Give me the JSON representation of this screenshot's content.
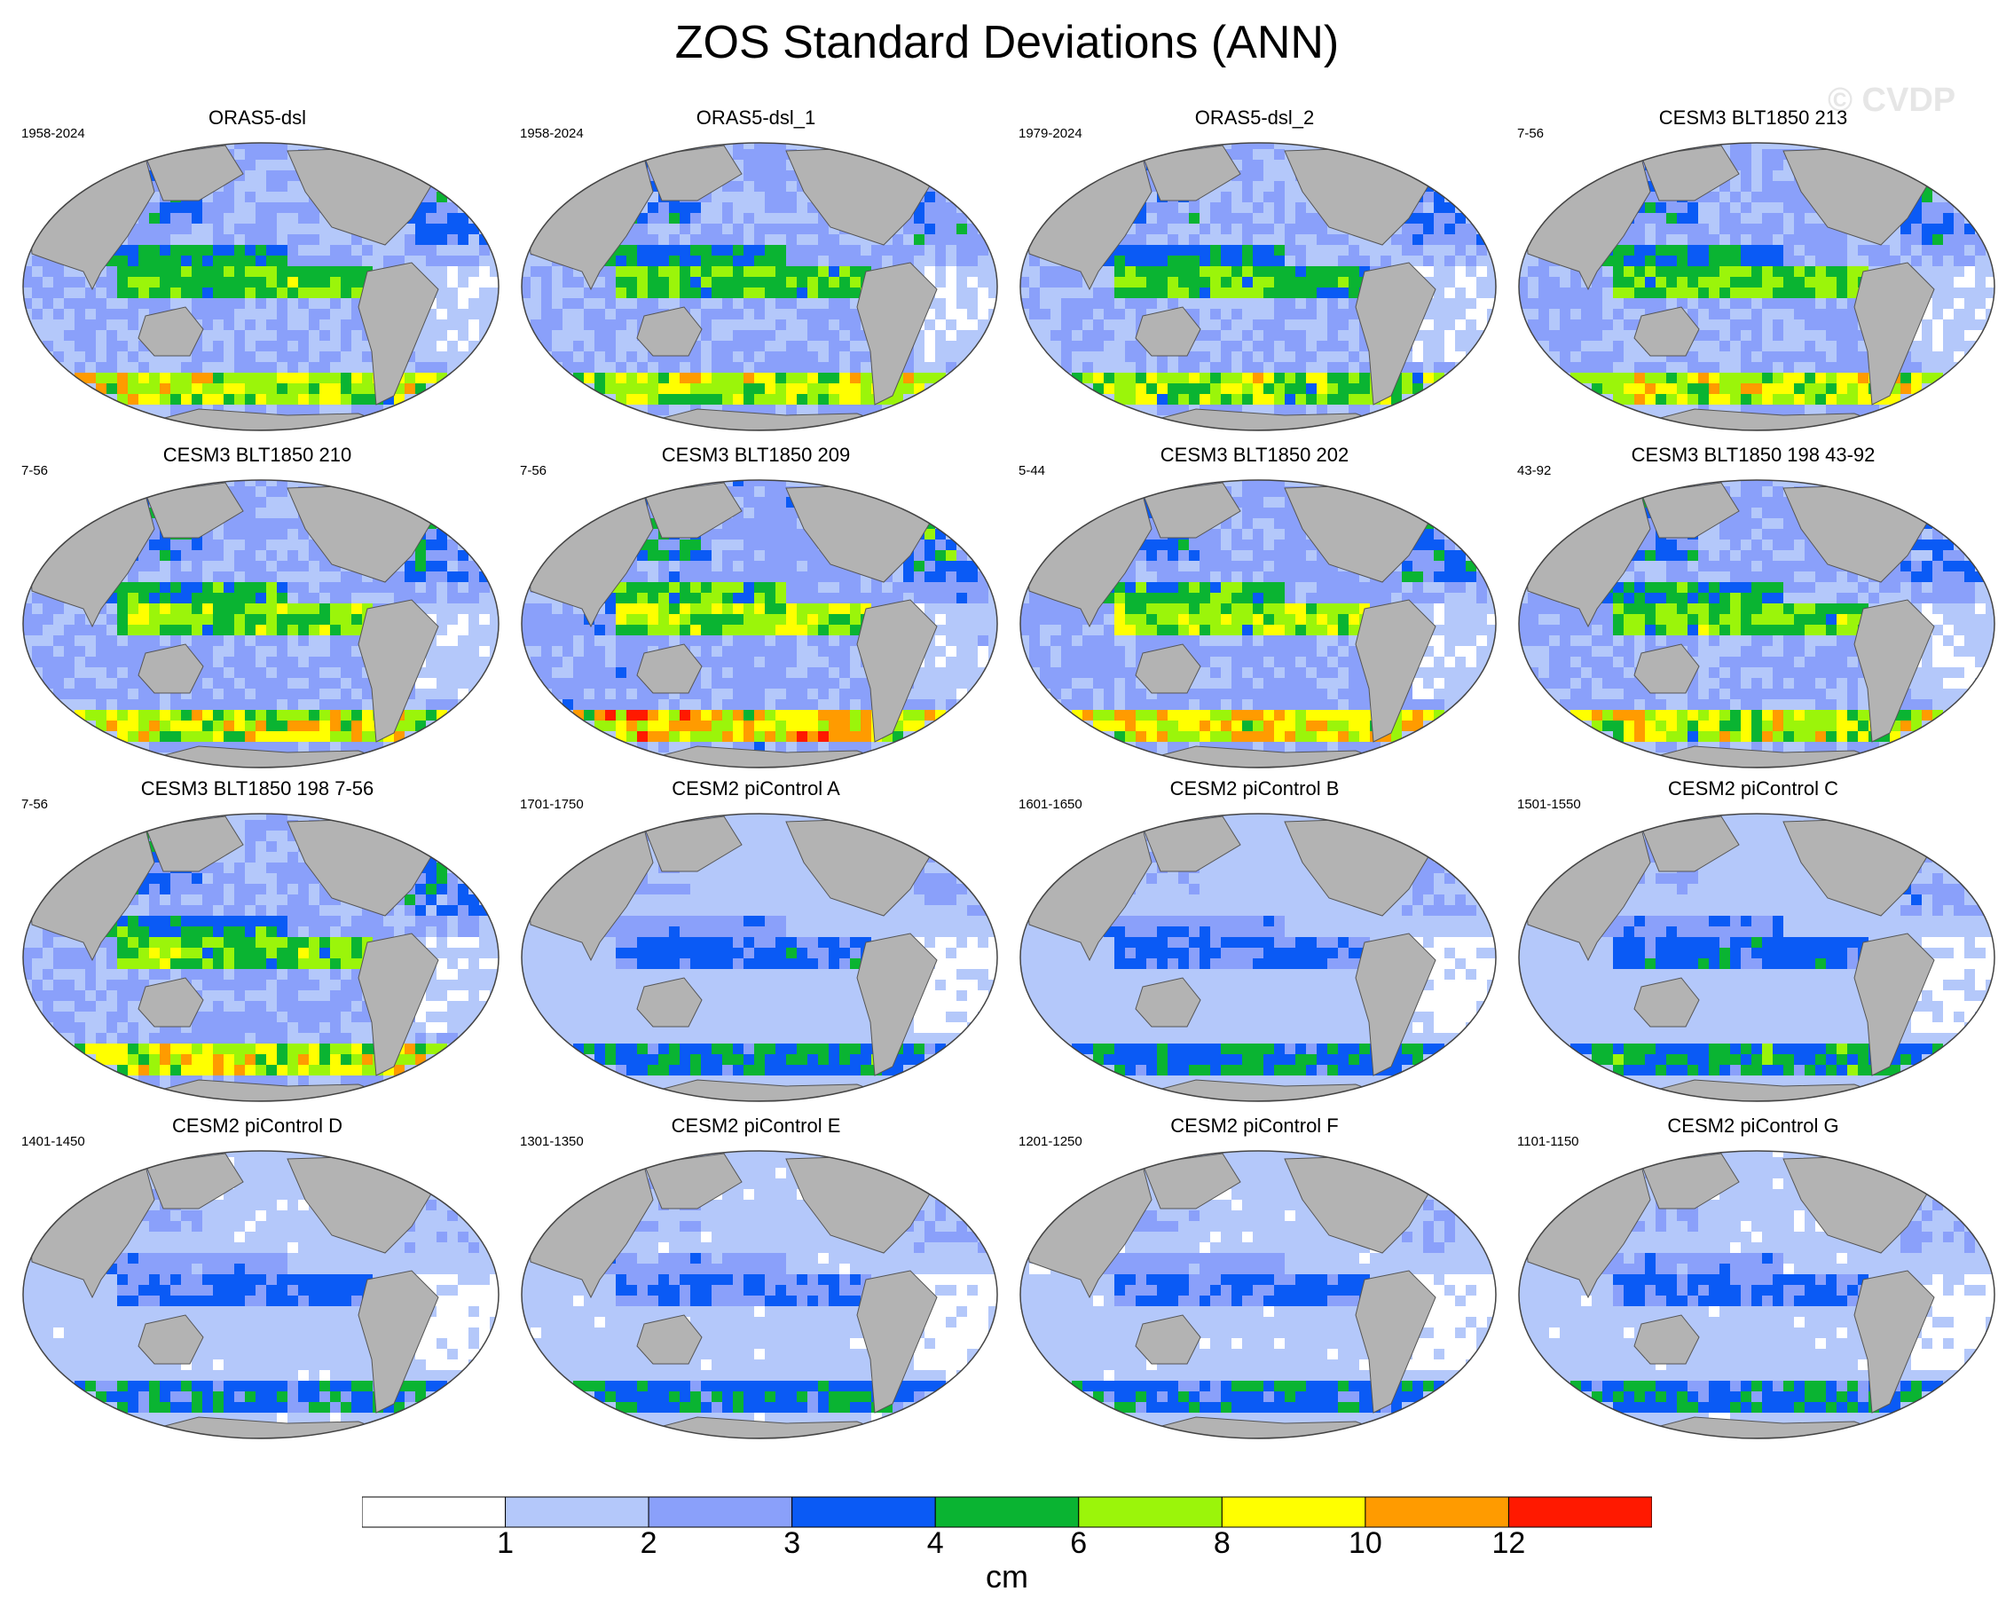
{
  "title": "ZOS Standard Deviations (ANN)",
  "watermark": "© CVDP",
  "colors": {
    "land": "#b3b3b3",
    "levels": [
      "#ffffff",
      "#b4c8fa",
      "#8aa0fa",
      "#0a5af5",
      "#0ab432",
      "#9bf50a",
      "#ffff00",
      "#ff9b00",
      "#ff1900"
    ]
  },
  "colorbar": {
    "tick_labels": [
      "1",
      "2",
      "3",
      "4",
      "6",
      "8",
      "10",
      "12"
    ],
    "unit": "cm"
  },
  "panels": [
    {
      "title": "ORAS5-dsl",
      "period": "1958-2024",
      "intensity": 1.25
    },
    {
      "title": "ORAS5-dsl_1",
      "period": "1958-2024",
      "intensity": 1.25
    },
    {
      "title": "ORAS5-dsl_2",
      "period": "1979-2024",
      "intensity": 1.2
    },
    {
      "title": "CESM3 BLT1850 213",
      "period": "7-56",
      "intensity": 1.3
    },
    {
      "title": "CESM3 BLT1850 210",
      "period": "7-56",
      "intensity": 1.35
    },
    {
      "title": "CESM3 BLT1850 209",
      "period": "7-56",
      "intensity": 1.45
    },
    {
      "title": "CESM3 BLT1850 202",
      "period": "5-44",
      "intensity": 1.4
    },
    {
      "title": "CESM3 BLT1850 198 43-92",
      "period": "43-92",
      "intensity": 1.3
    },
    {
      "title": "CESM3 BLT1850 198 7-56",
      "period": "7-56",
      "intensity": 1.3
    },
    {
      "title": "CESM2 piControl A",
      "period": "1701-1750",
      "intensity": 0.85
    },
    {
      "title": "CESM2 piControl B",
      "period": "1601-1650",
      "intensity": 0.85
    },
    {
      "title": "CESM2 piControl C",
      "period": "1501-1550",
      "intensity": 0.9
    },
    {
      "title": "CESM2 piControl D",
      "period": "1401-1450",
      "intensity": 0.8
    },
    {
      "title": "CESM2 piControl E",
      "period": "1301-1350",
      "intensity": 0.8
    },
    {
      "title": "CESM2 piControl F",
      "period": "1201-1250",
      "intensity": 0.8
    },
    {
      "title": "CESM2 piControl G",
      "period": "1101-1150",
      "intensity": 0.8
    }
  ]
}
